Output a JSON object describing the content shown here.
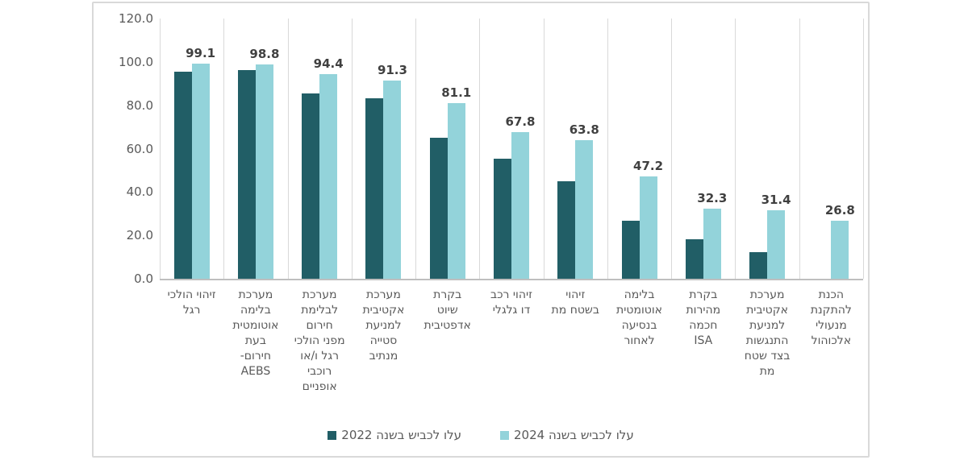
{
  "chart_data": {
    "type": "bar",
    "direction": "rtl",
    "categories": [
      "זיהוי הולכי רגל",
      "מערכת בלימה אוטומטית בעת חירום- AEBS",
      "מערכת לבלימת חירום מפני הולכי רגל ו/או רוכבי אופניים",
      "מערכת אקטיבית למניעת סטייה מנתיב",
      "בקרת שיוט אדפטיבית",
      "זיהוי רכב דו גלגלי",
      "זיהוי בשטח מת",
      "בלימה אוטומטית בנסיעה לאחור",
      "בקרת מהירות חכמה ISA",
      "מערכת אקטיבית למניעת התנגשות בצד שטח מת",
      "הכנת להתקנת מנעולי אלכוהול"
    ],
    "category_display_lines": [
      [
        "זיהוי הולכי",
        "רגל"
      ],
      [
        "מערכת",
        "בלימה",
        "אוטומטית",
        "בעת",
        "חירום-",
        "AEBS"
      ],
      [
        "מערכת",
        "לבלימת",
        "חירום",
        "מפני הולכי",
        "רגל ו/או",
        "רוכבי",
        "אופניים"
      ],
      [
        "מערכת",
        "אקטיבית",
        "למניעת",
        "סטייה",
        "מנתיב"
      ],
      [
        "בקרת",
        "שיוט",
        "אדפטיבית"
      ],
      [
        "זיהוי רכב",
        "דו גלגלי"
      ],
      [
        "זיהוי",
        "בשטח מת"
      ],
      [
        "בלימה",
        "אוטומטית",
        "בנסיעה",
        "לאחור"
      ],
      [
        "בקרת",
        "מהירות",
        "חכמה",
        "ISA"
      ],
      [
        "מערכת",
        "אקטיבית",
        "למניעת",
        "התנגשות",
        "בצד שטח",
        "מת"
      ],
      [
        "הכנת",
        "להתקנת",
        "מנעולי",
        "אלכוהול"
      ]
    ],
    "series": [
      {
        "name": "עלו לכביש בשנה 2022",
        "color": "#215E66",
        "values": [
          95.4,
          96.3,
          85.5,
          83.2,
          65.0,
          55.4,
          45.0,
          26.8,
          18.2,
          12.3,
          null
        ]
      },
      {
        "name": "עלו לכביש בשנה 2024",
        "color": "#93D3DA",
        "values": [
          99.1,
          98.8,
          94.4,
          91.3,
          81.1,
          67.8,
          63.8,
          47.2,
          32.3,
          31.4,
          26.8
        ],
        "data_labels": [
          "99.1",
          "98.8",
          "94.4",
          "91.3",
          "81.1",
          "67.8",
          "63.8",
          "47.2",
          "32.3",
          "31.4",
          "26.8"
        ]
      }
    ],
    "y_axis": {
      "min": 0,
      "max": 120,
      "step": 20,
      "tick_labels": [
        "0.0",
        "20.0",
        "40.0",
        "60.0",
        "80.0",
        "100.0",
        "120.0"
      ]
    },
    "ylim": [
      0,
      120
    ],
    "gridlines": {
      "horizontal": false,
      "vertical": true
    },
    "legend": {
      "position": "bottom-center",
      "items": [
        {
          "label": "עלו לכביש בשנה 2022",
          "color": "#215E66"
        },
        {
          "label": "עלו לכביש בשנה 2024",
          "color": "#93D3DA"
        }
      ]
    }
  },
  "colors": {
    "background": "#FFFFFF",
    "frame_border": "#D9D9D9",
    "gridline": "#D9D9D9",
    "axis_line": "#BFBFBF",
    "tick_text": "#595959",
    "category_text": "#595959",
    "data_label_text": "#404040",
    "series_2022": "#215E66",
    "series_2024": "#93D3DA"
  }
}
